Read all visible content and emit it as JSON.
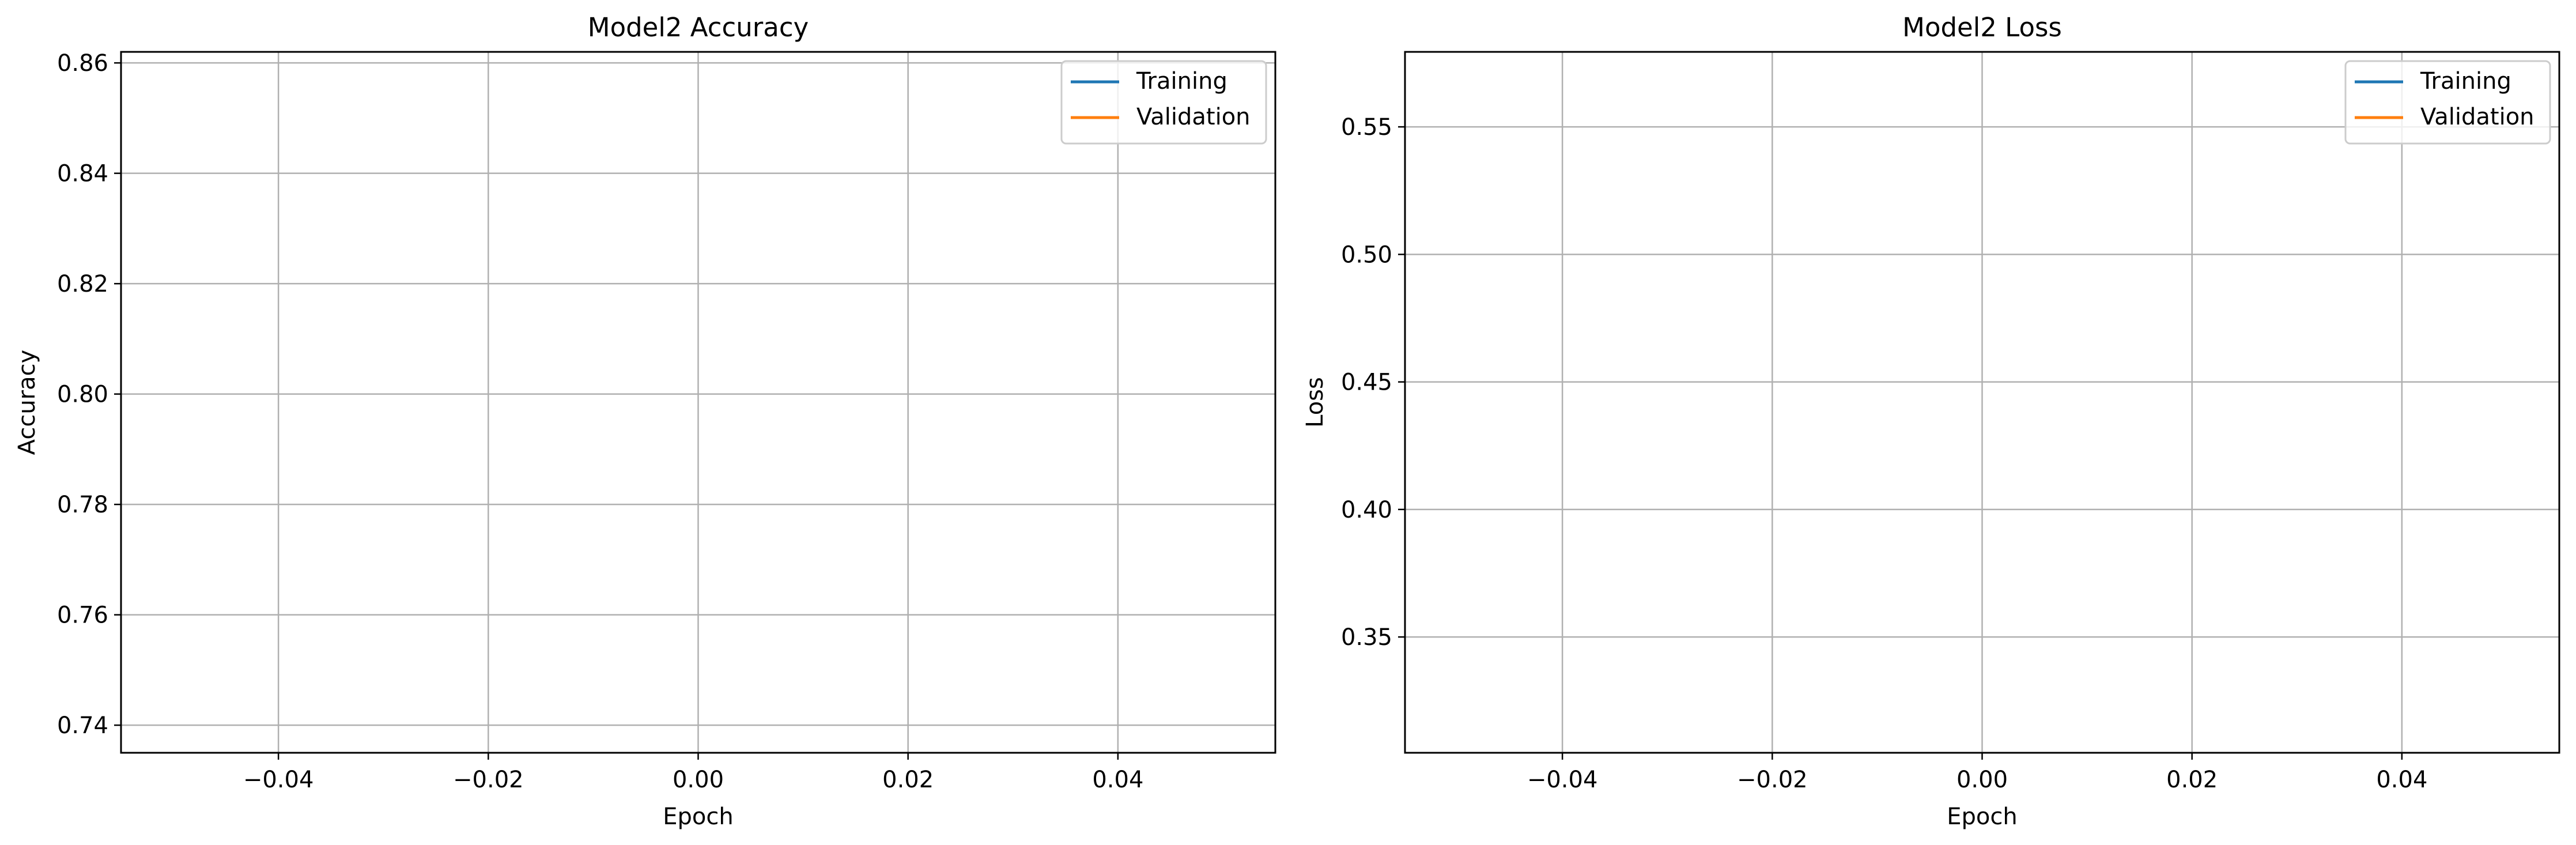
{
  "chart_data": [
    {
      "type": "line",
      "title": "Model2 Accuracy",
      "xlabel": "Epoch",
      "ylabel": "Accuracy",
      "xlim": [
        -0.055,
        0.055
      ],
      "ylim": [
        0.735,
        0.862
      ],
      "xticks": [
        -0.04,
        -0.02,
        0.0,
        0.02,
        0.04
      ],
      "xtick_labels": [
        "−0.04",
        "−0.02",
        "0.00",
        "0.02",
        "0.04"
      ],
      "yticks": [
        0.74,
        0.76,
        0.78,
        0.8,
        0.82,
        0.84,
        0.86
      ],
      "ytick_labels": [
        "0.74",
        "0.76",
        "0.78",
        "0.80",
        "0.82",
        "0.84",
        "0.86"
      ],
      "grid": true,
      "legend_position": "top-right",
      "series": [
        {
          "name": "Training",
          "color": "#1f77b4",
          "x": [],
          "y": []
        },
        {
          "name": "Validation",
          "color": "#ff7f0e",
          "x": [],
          "y": []
        }
      ]
    },
    {
      "type": "line",
      "title": "Model2 Loss",
      "xlabel": "Epoch",
      "ylabel": "Loss",
      "xlim": [
        -0.055,
        0.055
      ],
      "ylim": [
        0.3046,
        0.5794
      ],
      "xticks": [
        -0.04,
        -0.02,
        0.0,
        0.02,
        0.04
      ],
      "xtick_labels": [
        "−0.04",
        "−0.02",
        "0.00",
        "0.02",
        "0.04"
      ],
      "yticks": [
        0.35,
        0.4,
        0.45,
        0.5,
        0.55
      ],
      "ytick_labels": [
        "0.35",
        "0.40",
        "0.45",
        "0.50",
        "0.55"
      ],
      "grid": true,
      "legend_position": "top-right",
      "series": [
        {
          "name": "Training",
          "color": "#1f77b4",
          "x": [],
          "y": []
        },
        {
          "name": "Validation",
          "color": "#ff7f0e",
          "x": [],
          "y": []
        }
      ]
    }
  ]
}
